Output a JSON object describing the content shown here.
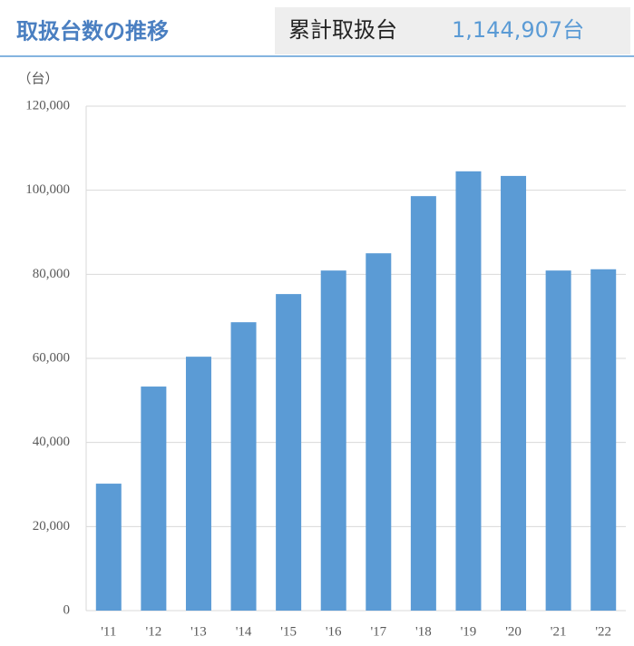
{
  "chart_data": {
    "type": "bar",
    "title": "取扱台数の推移",
    "summary": {
      "label": "累計取扱台",
      "value": "1,144,907台"
    },
    "y_unit": "（台）",
    "categories": [
      "'11",
      "'12",
      "'13",
      "'14",
      "'15",
      "'16",
      "'17",
      "'18",
      "'19",
      "'20",
      "'21",
      "'22"
    ],
    "values": [
      30200,
      53300,
      60400,
      68600,
      75300,
      80900,
      85000,
      98600,
      104500,
      103400,
      80900,
      81200
    ],
    "color": "#5b9bd5",
    "ylim": [
      0,
      120000
    ],
    "yticks": [
      0,
      {
        "value": 20000,
        "label": "20,000"
      },
      {
        "value": 40000,
        "label": "40,000"
      },
      {
        "value": 60000,
        "label": "60,000"
      },
      {
        "value": 80000,
        "label": "80,000"
      },
      {
        "value": 100000,
        "label": "100,000"
      },
      {
        "value": 120000,
        "label": "120,000"
      }
    ],
    "grid": true
  }
}
